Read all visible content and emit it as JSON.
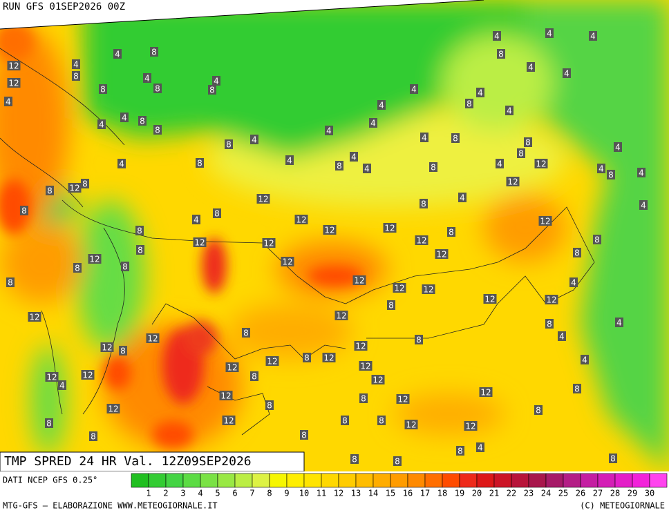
{
  "header": {
    "run": "RUN GFS 01SEP2026 00Z"
  },
  "title": "TMP SPRED 24 HR Val. 12Z09SEP2026",
  "colorbar": {
    "source": "DATI NCEP GFS 0.25°",
    "colors": [
      "#1fbf1f",
      "#33cc33",
      "#44d444",
      "#5cdc44",
      "#7ae244",
      "#99e844",
      "#bbee44",
      "#ddf244",
      "#f6f600",
      "#ffee00",
      "#ffe400",
      "#ffd800",
      "#ffcc00",
      "#ffbd00",
      "#ffad00",
      "#ff9c00",
      "#ff8a00",
      "#ff6e00",
      "#ff4c00",
      "#ee2a1a",
      "#dd1818",
      "#cc1426",
      "#b8143a",
      "#a8164c",
      "#a61a68",
      "#b41e86",
      "#c41ea2",
      "#d41eb6",
      "#e41ec8",
      "#f222da",
      "#ff44ee"
    ],
    "ticks": [
      1,
      2,
      3,
      4,
      5,
      6,
      7,
      8,
      9,
      10,
      11,
      12,
      13,
      14,
      15,
      16,
      17,
      18,
      19,
      20,
      21,
      22,
      23,
      24,
      25,
      26,
      27,
      28,
      29,
      30
    ]
  },
  "footer": {
    "left": "MTG-GFS — ELABORAZIONE WWW.METEOGIORNALE.IT",
    "right": "(C) METEOGIORNALE"
  },
  "contour_labels": [
    12,
    12,
    4,
    4,
    8,
    4,
    8,
    4,
    4,
    8,
    8,
    8,
    4,
    8,
    4,
    8,
    8,
    4,
    4,
    8,
    4,
    4,
    8,
    4,
    4,
    4,
    4,
    4,
    4,
    8,
    8,
    8,
    4,
    4,
    4,
    8,
    4,
    4,
    4,
    4,
    8,
    8,
    4,
    12,
    12,
    4,
    4,
    4,
    8,
    4,
    12,
    8,
    8,
    8,
    12,
    12,
    12,
    12,
    8,
    4,
    8,
    12,
    8,
    4,
    8,
    8,
    12,
    12,
    12,
    12,
    12,
    8,
    8,
    8,
    12,
    8,
    8,
    12,
    12,
    12,
    12,
    8,
    12,
    12,
    4,
    4,
    8,
    4,
    12,
    8,
    12,
    12,
    8,
    8,
    12,
    12,
    8,
    12,
    12,
    8,
    12,
    12,
    12,
    12,
    4,
    12,
    4,
    8,
    12,
    12,
    8,
    8,
    12,
    12,
    8,
    8,
    8,
    12,
    8,
    12,
    8,
    8,
    4,
    8,
    8,
    8,
    8
  ]
}
